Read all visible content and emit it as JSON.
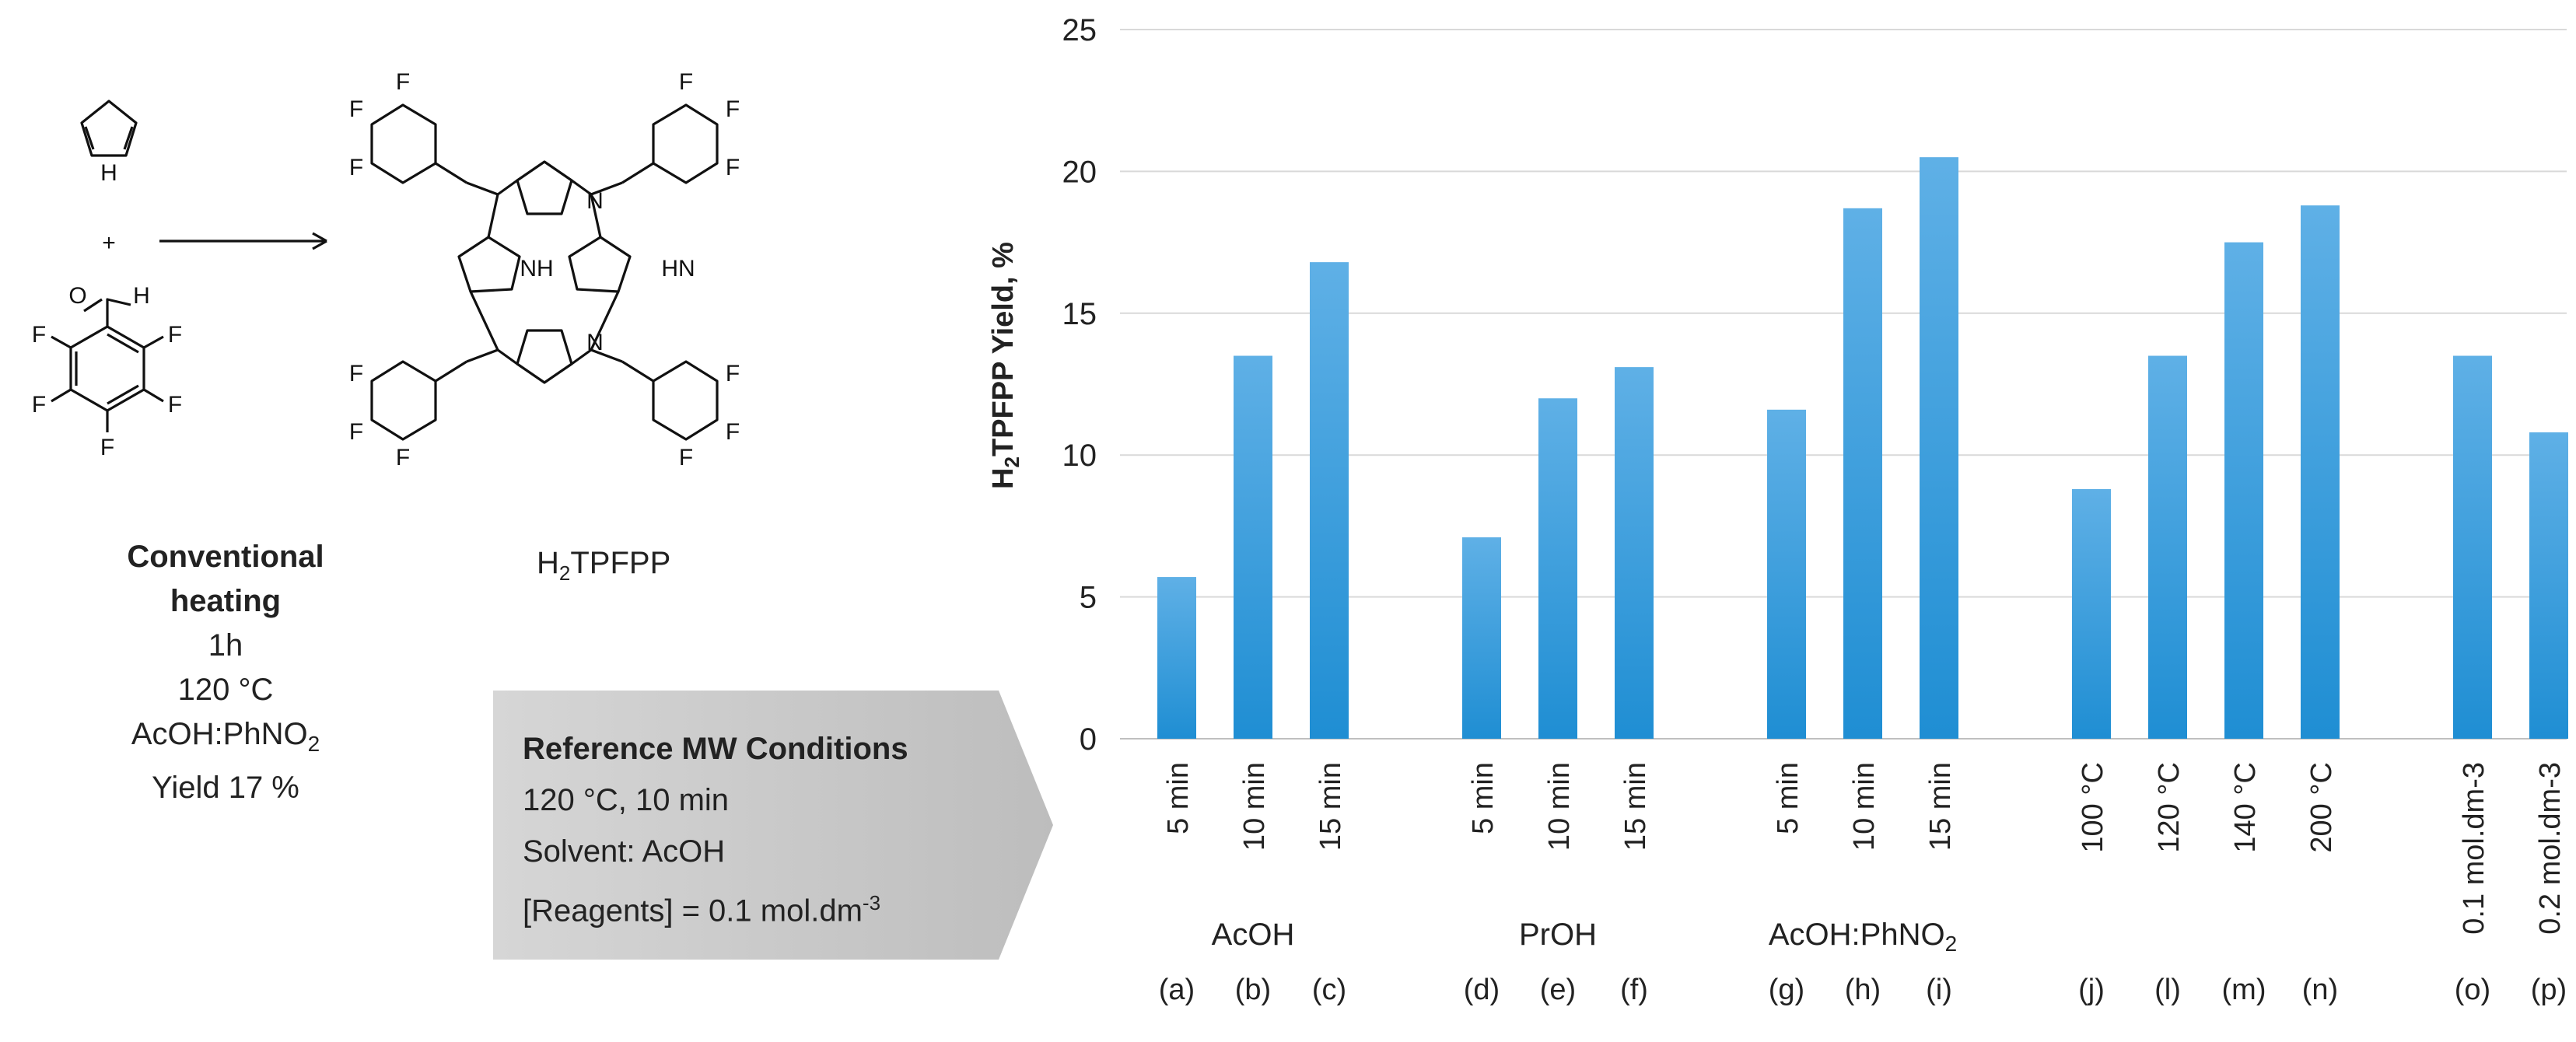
{
  "scheme": {
    "reactant_amine_label": "H",
    "plus": "+",
    "aldehyde_h_label": "H",
    "aldehyde_o_label": "O",
    "fluorine": "F",
    "nh": "NH",
    "hn": "HN",
    "n": "N",
    "product_label_main": "H",
    "product_label_sub": "2",
    "product_label_rest": "TPFPP"
  },
  "conventional": {
    "line1": "Conventional",
    "line2": "heating",
    "line3": "1h",
    "line4": "120 °C",
    "line5_main": "AcOH:PhNO",
    "line5_sub": "2",
    "line6": "Yield 17 %"
  },
  "reference": {
    "title": "Reference MW Conditions",
    "line1": "120 °C, 10 min",
    "line2": "Solvent: AcOH",
    "line3_main": "[Reagents] = 0.1 mol.dm",
    "line3_sup": "-3"
  },
  "colors": {
    "bar": "#2e9ad8",
    "bar_light": "#5fb0e6",
    "grid": "#d9d9d9",
    "arrow_box": "#c8c8c8"
  },
  "chart_data": {
    "type": "bar",
    "title": "",
    "ylabel_main": "H",
    "ylabel_sub": "2",
    "ylabel_rest": "TPFPP Yield, %",
    "ylim": [
      0,
      25
    ],
    "yticks": [
      0,
      5,
      10,
      15,
      20,
      25
    ],
    "grid": true,
    "bars": [
      {
        "group": 0,
        "slot": 0,
        "label": "5 min",
        "letter": "(a)",
        "value": 5.7
      },
      {
        "group": 0,
        "slot": 1,
        "label": "10 min",
        "letter": "(b)",
        "value": 13.5
      },
      {
        "group": 0,
        "slot": 2,
        "label": "15 min",
        "letter": "(c)",
        "value": 16.8
      },
      {
        "group": 1,
        "slot": 0,
        "label": "5 min",
        "letter": "(d)",
        "value": 7.1
      },
      {
        "group": 1,
        "slot": 1,
        "label": "10 min",
        "letter": "(e)",
        "value": 12.0
      },
      {
        "group": 1,
        "slot": 2,
        "label": "15 min",
        "letter": "(f)",
        "value": 13.1
      },
      {
        "group": 2,
        "slot": 0,
        "label": "5 min",
        "letter": "(g)",
        "value": 11.6
      },
      {
        "group": 2,
        "slot": 1,
        "label": "10 min",
        "letter": "(h)",
        "value": 18.7
      },
      {
        "group": 2,
        "slot": 2,
        "label": "15 min",
        "letter": "(i)",
        "value": 20.5
      },
      {
        "group": 3,
        "slot": 0,
        "label": "100 °C",
        "letter": "(j)",
        "value": 8.8
      },
      {
        "group": 3,
        "slot": 1,
        "label": "120 °C",
        "letter": "(l)",
        "value": 13.5
      },
      {
        "group": 3,
        "slot": 2,
        "label": "140 °C",
        "letter": "(m)",
        "value": 17.5
      },
      {
        "group": 3,
        "slot": 3,
        "label": "200 °C",
        "letter": "(n)",
        "value": 18.8
      },
      {
        "group": 4,
        "slot": 0,
        "label": "0.1 mol.dm-3",
        "letter": "(o)",
        "value": 13.5
      },
      {
        "group": 4,
        "slot": 1,
        "label": "0.2 mol.dm-3",
        "letter": "(p)",
        "value": 10.8
      }
    ],
    "groups": [
      {
        "label": "AcOH"
      },
      {
        "label": "PrOH"
      },
      {
        "label_main": "AcOH:PhNO",
        "label_sub": "2"
      },
      {
        "label": ""
      },
      {
        "label": ""
      }
    ]
  }
}
